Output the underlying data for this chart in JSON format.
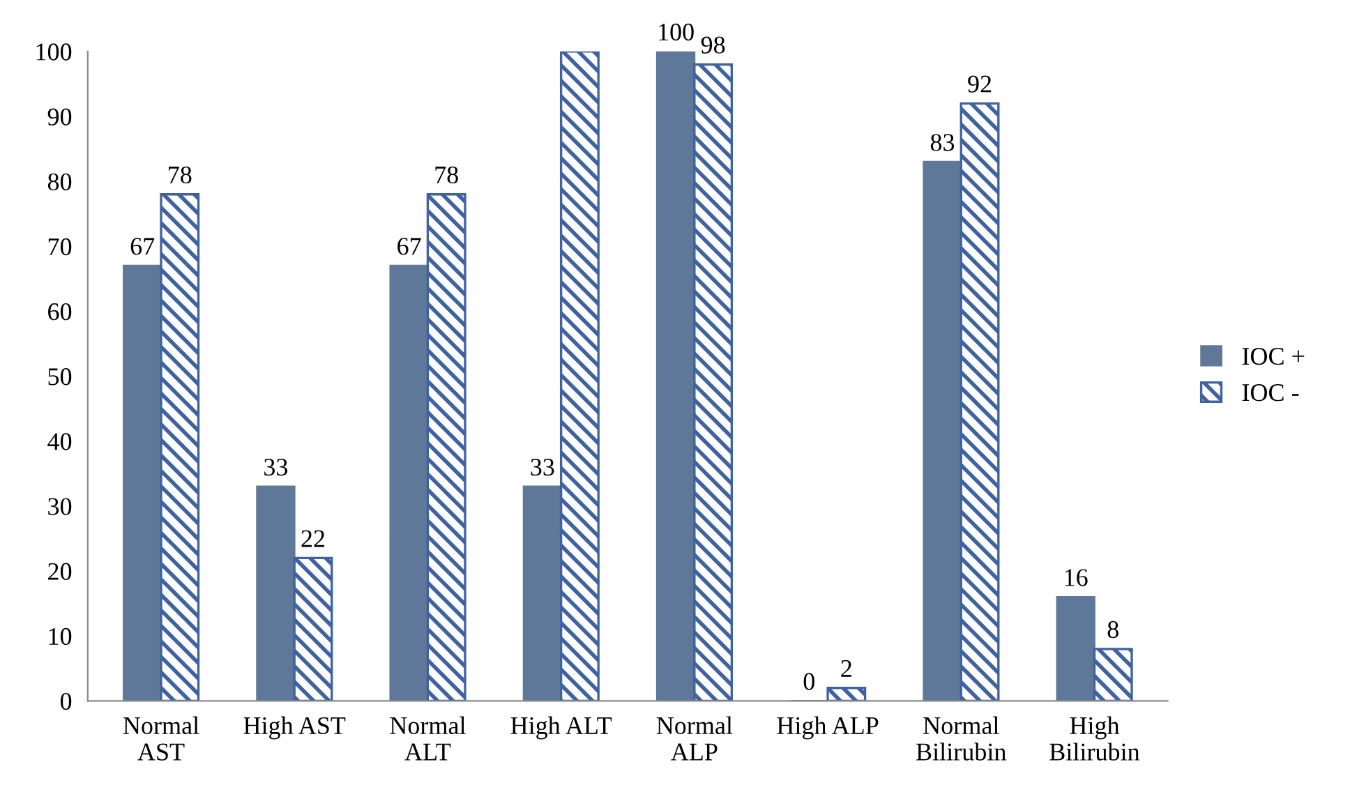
{
  "chart_data": {
    "type": "bar",
    "categories": [
      "Normal\nAST",
      "High AST",
      "Normal\nALT",
      "High ALT",
      "Normal\nALP",
      "High ALP",
      "Normal\nBilirubin",
      "High\nBilirubin"
    ],
    "series": [
      {
        "name": "IOC +",
        "color": "#5f7799",
        "values": [
          67,
          33,
          67,
          33,
          100,
          0,
          83,
          16
        ],
        "value_labels": [
          "67",
          "33",
          "67",
          "33",
          "100",
          "0",
          "83",
          "16"
        ]
      },
      {
        "name": "IOC -",
        "color": "#3f62a0",
        "values": [
          78,
          22,
          78,
          100,
          98,
          2,
          92,
          8
        ],
        "value_labels": [
          "78",
          "22",
          "78",
          null,
          "98",
          "2",
          "92",
          "8"
        ]
      }
    ],
    "ylim": [
      0,
      100
    ],
    "yticks": [
      0,
      10,
      20,
      30,
      40,
      50,
      60,
      70,
      80,
      90,
      100
    ],
    "grid": false,
    "legend": "right"
  }
}
